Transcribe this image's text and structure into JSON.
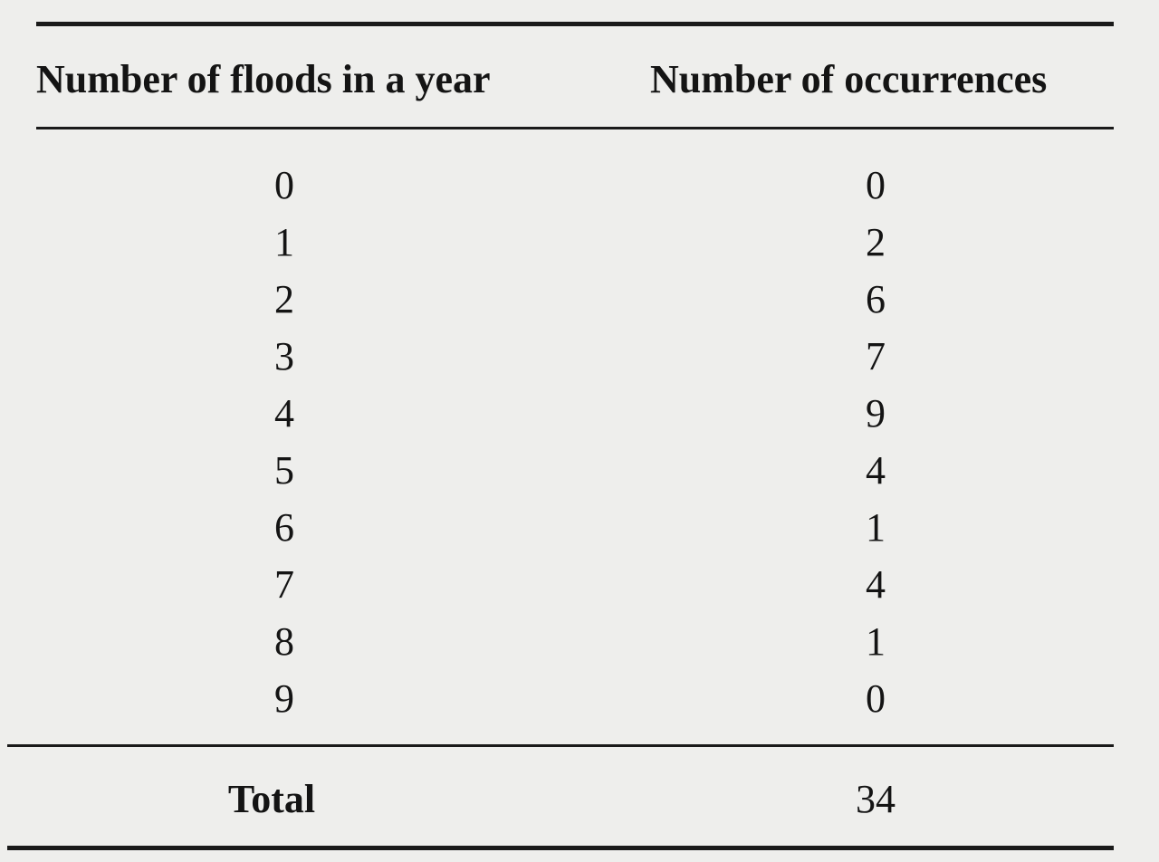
{
  "table": {
    "headers": [
      "Number of floods in a year",
      "Number of occurrences"
    ],
    "rows": [
      {
        "floods": "0",
        "occurrences": "0"
      },
      {
        "floods": "1",
        "occurrences": "2"
      },
      {
        "floods": "2",
        "occurrences": "6"
      },
      {
        "floods": "3",
        "occurrences": "7"
      },
      {
        "floods": "4",
        "occurrences": "9"
      },
      {
        "floods": "5",
        "occurrences": "4"
      },
      {
        "floods": "6",
        "occurrences": "1"
      },
      {
        "floods": "7",
        "occurrences": "4"
      },
      {
        "floods": "8",
        "occurrences": "1"
      },
      {
        "floods": "9",
        "occurrences": "0"
      }
    ],
    "total": {
      "label": "Total",
      "value": "34"
    }
  }
}
